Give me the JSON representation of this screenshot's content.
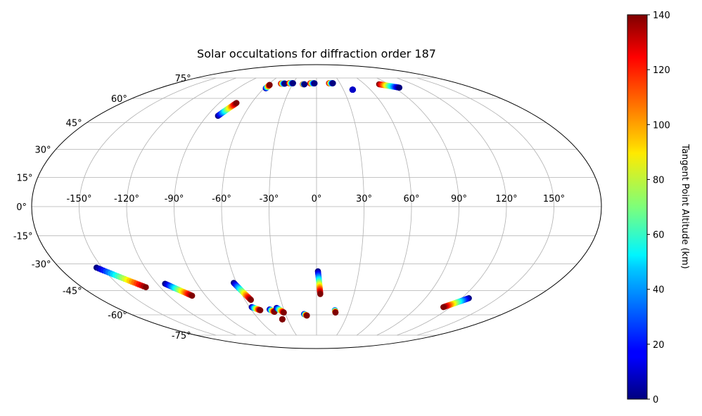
{
  "chart_data": {
    "type": "scatter",
    "projection": "mollweide",
    "title": "Solar occultations for diffraction order 187",
    "grid": true,
    "longitude_ticks": [
      -150,
      -120,
      -90,
      -60,
      -30,
      0,
      30,
      60,
      90,
      120,
      150
    ],
    "longitude_tick_labels": [
      "-150°",
      "-120°",
      "-90°",
      "-60°",
      "-30°",
      "0°",
      "30°",
      "60°",
      "90°",
      "120°",
      "150°"
    ],
    "latitude_ticks": [
      75,
      60,
      45,
      30,
      15,
      0,
      -15,
      -30,
      -45,
      -60,
      -75
    ],
    "latitude_tick_labels": [
      "75°",
      "60°",
      "45°",
      "30°",
      "15°",
      "0°",
      "-15°",
      "-30°",
      "-45°",
      "-60°",
      "-75°"
    ],
    "colorbar": {
      "label": "Tangent Point Altitude (km)",
      "colormap": "jet",
      "range": [
        0,
        140
      ],
      "ticks": [
        0,
        20,
        40,
        60,
        80,
        100,
        120,
        140
      ],
      "tick_labels": [
        "0",
        "20",
        "40",
        "60",
        "80",
        "100",
        "120",
        "140"
      ]
    },
    "x_unit": "longitude (degrees)",
    "y_unit": "latitude (degrees)",
    "color_value": "tangent point altitude (km)",
    "occultations": [
      {
        "start": [
          -81.0,
          49.0
        ],
        "end": [
          -74.0,
          57.0
        ],
        "alt_start": 0,
        "alt_end": 140
      },
      {
        "start": [
          -58.0,
          67.0
        ],
        "end": [
          -57.5,
          69.5
        ],
        "alt_start": 0,
        "alt_end": 140
      },
      {
        "start": [
          -45.0,
          70.5
        ],
        "end": [
          -40.0,
          70.5
        ],
        "alt_start": 140,
        "alt_end": 0
      },
      {
        "start": [
          -35.0,
          70.8
        ],
        "end": [
          -30.0,
          70.8
        ],
        "alt_start": 140,
        "alt_end": 0
      },
      {
        "start": [
          -17.0,
          70.0
        ],
        "end": [
          -15.0,
          70.0
        ],
        "alt_start": 140,
        "alt_end": 0
      },
      {
        "start": [
          -8.0,
          70.7
        ],
        "end": [
          -2.5,
          70.7
        ],
        "alt_start": 140,
        "alt_end": 0
      },
      {
        "start": [
          16.0,
          70.8
        ],
        "end": [
          21.0,
          70.8
        ],
        "alt_start": 140,
        "alt_end": 0
      },
      {
        "start": [
          40.0,
          66.0
        ],
        "end": [
          40.5,
          66.0
        ],
        "alt_start": 10,
        "alt_end": 10
      },
      {
        "start": [
          78.0,
          70.0
        ],
        "end": [
          96.0,
          67.5
        ],
        "alt_start": 140,
        "alt_end": 0
      },
      {
        "start": [
          -154.0,
          -32.0
        ],
        "end": [
          -131.0,
          -43.0
        ],
        "alt_start": 0,
        "alt_end": 140
      },
      {
        "start": [
          -114.0,
          -41.0
        ],
        "end": [
          -101.0,
          -48.0
        ],
        "alt_start": 0,
        "alt_end": 140
      },
      {
        "start": [
          -62.0,
          -40.5
        ],
        "end": [
          -55.0,
          -50.5
        ],
        "alt_start": 0,
        "alt_end": 140
      },
      {
        "start": [
          -58.0,
          -55.0
        ],
        "end": [
          -52.0,
          -57.0
        ],
        "alt_start": 0,
        "alt_end": 140
      },
      {
        "start": [
          -43.0,
          -56.5
        ],
        "end": [
          -39.5,
          -58.0
        ],
        "alt_start": 0,
        "alt_end": 140
      },
      {
        "start": [
          -36.0,
          -55.5
        ],
        "end": [
          -31.0,
          -58.5
        ],
        "alt_start": 0,
        "alt_end": 140
      },
      {
        "start": [
          -35.5,
          -63.0
        ],
        "end": [
          -35.5,
          -63.0
        ],
        "alt_start": 140,
        "alt_end": 140
      },
      {
        "start": [
          -12.0,
          -59.5
        ],
        "end": [
          -9.5,
          -60.5
        ],
        "alt_start": 0,
        "alt_end": 140
      },
      {
        "start": [
          1.0,
          -34.0
        ],
        "end": [
          3.0,
          -47.0
        ],
        "alt_start": 0,
        "alt_end": 140
      },
      {
        "start": [
          17.0,
          -57.0
        ],
        "end": [
          18.0,
          -58.5
        ],
        "alt_start": 20,
        "alt_end": 140
      },
      {
        "start": [
          126.0,
          -49.5
        ],
        "end": [
          113.5,
          -55.0
        ],
        "alt_start": 0,
        "alt_end": 140
      }
    ]
  }
}
